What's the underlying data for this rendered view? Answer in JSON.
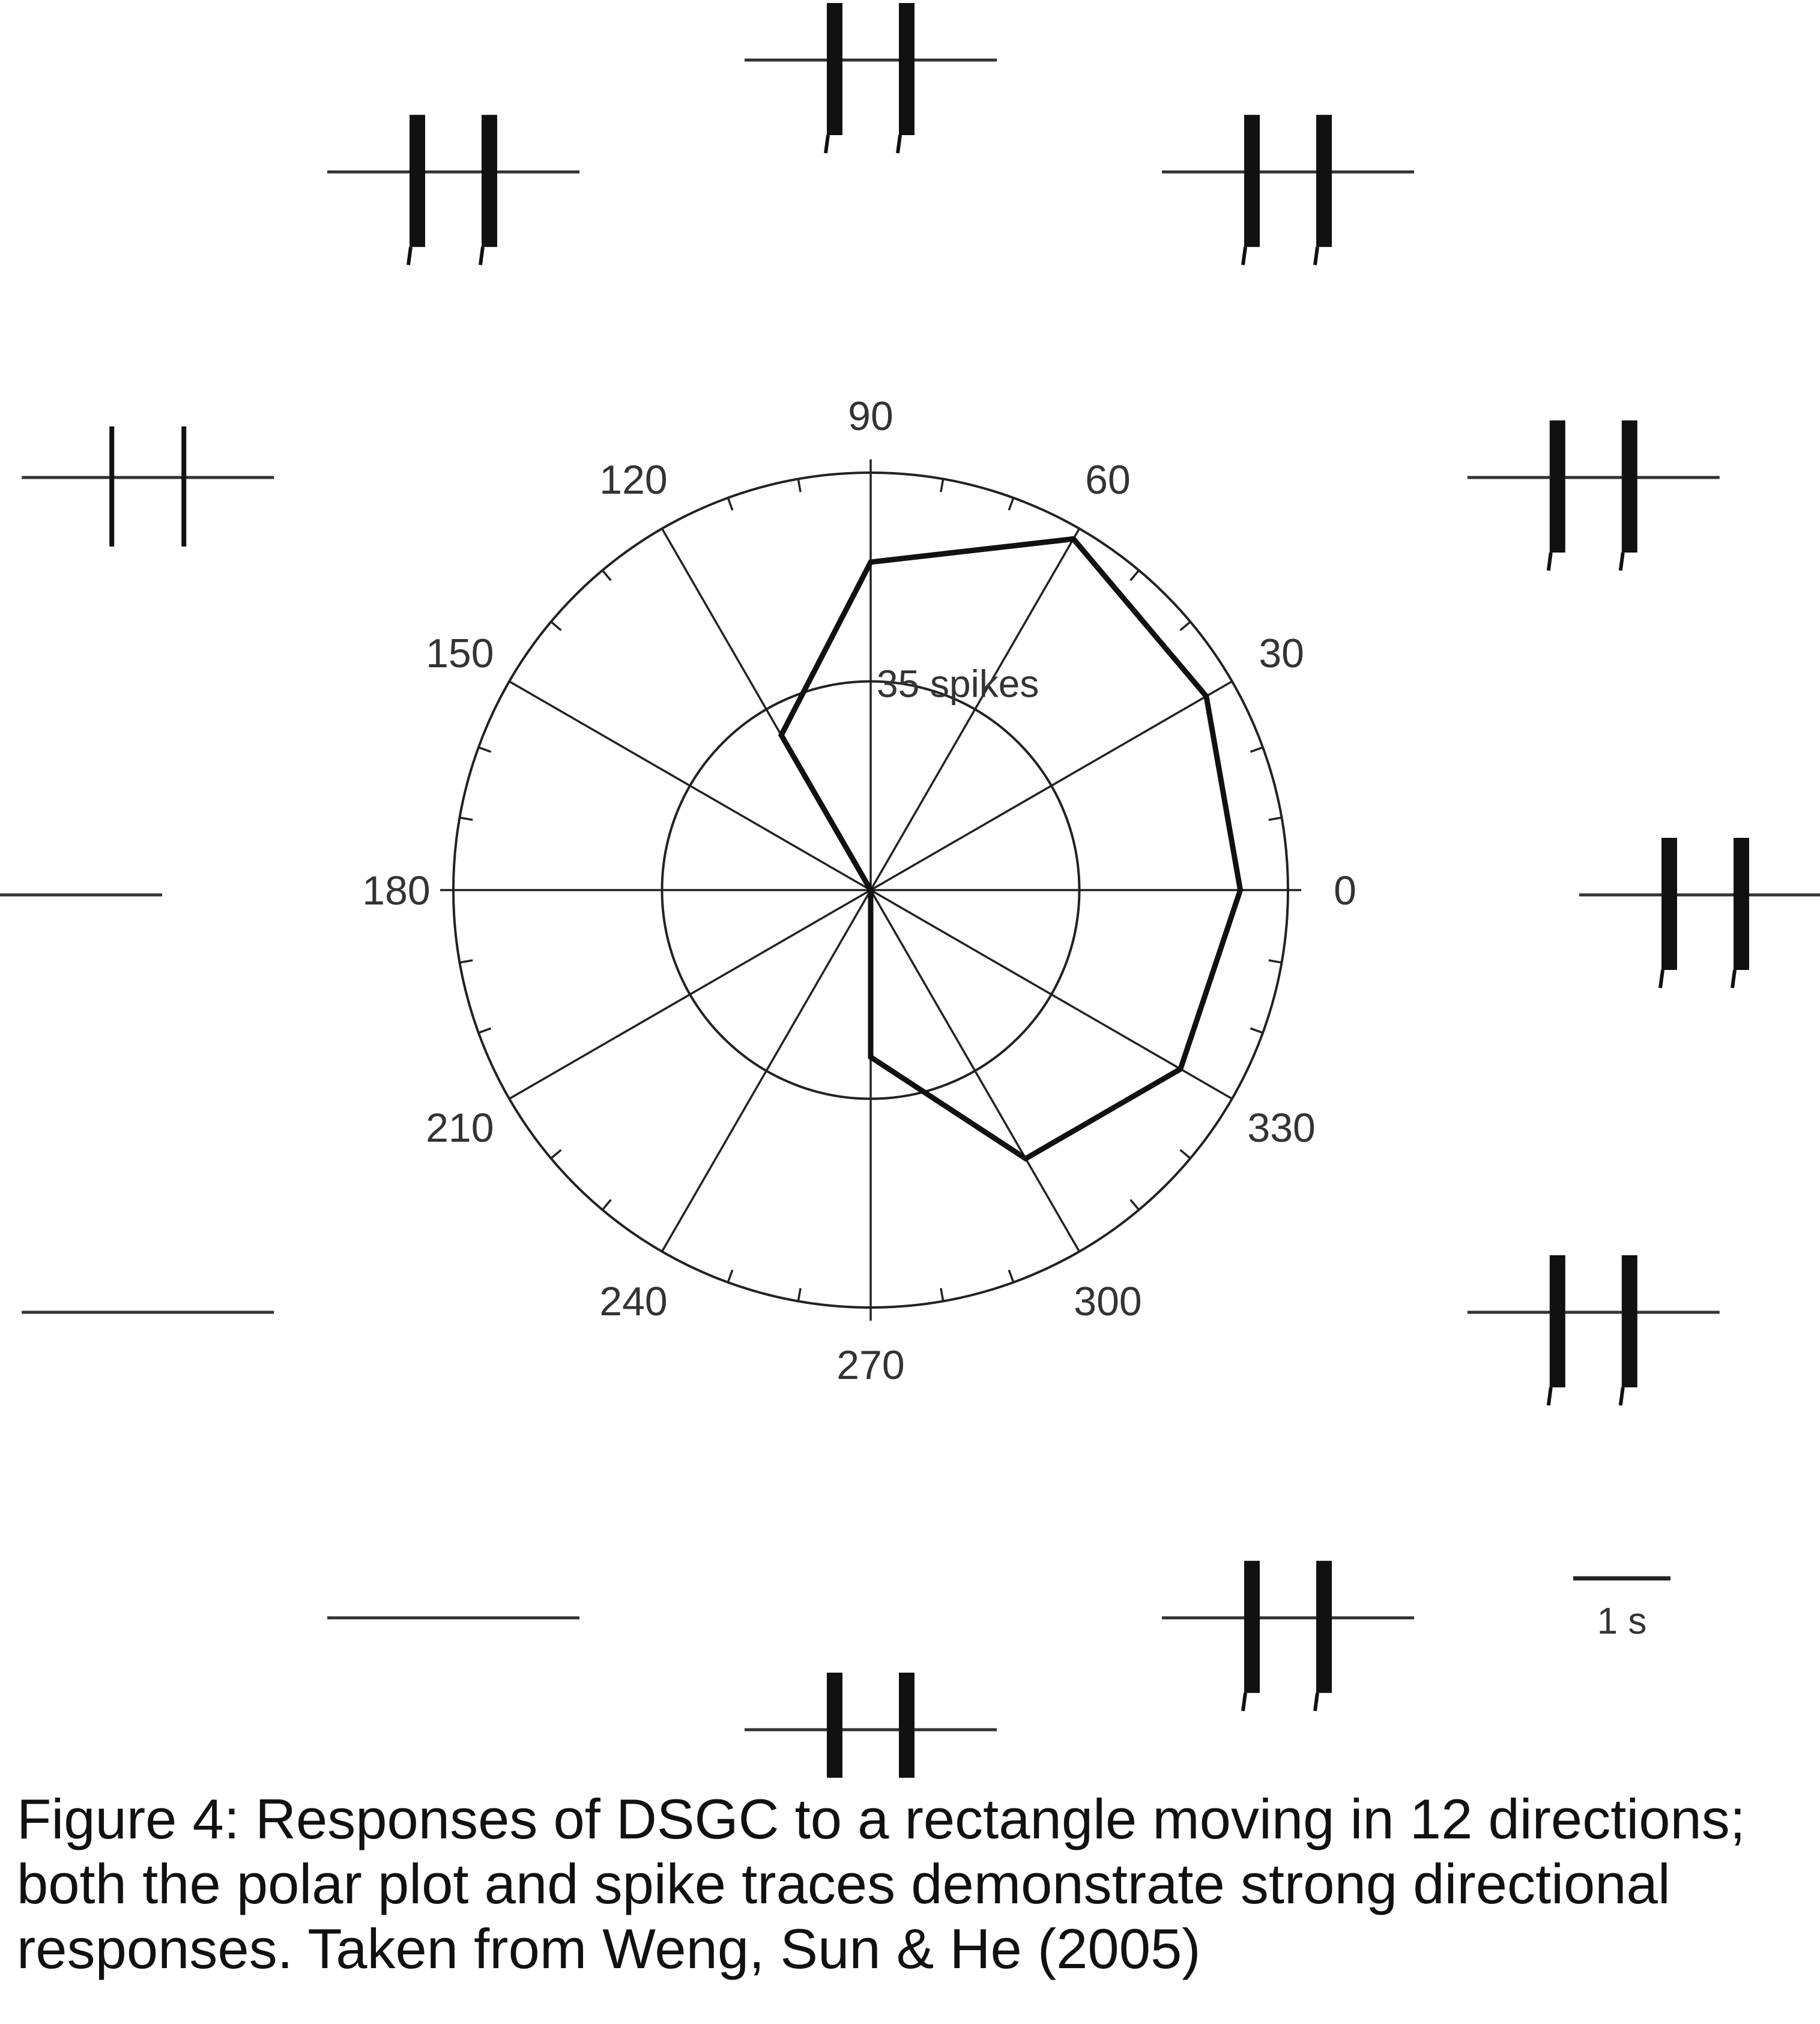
{
  "chart_data": {
    "type": "polar",
    "angle_unit": "degrees",
    "angle_ticks": [
      "0",
      "30",
      "60",
      "90",
      "120",
      "150",
      "180",
      "210",
      "240",
      "270",
      "300",
      "330"
    ],
    "directions": [
      0,
      30,
      60,
      90,
      120,
      150,
      180,
      210,
      240,
      270,
      300,
      330
    ],
    "spike_counts": [
      62,
      65,
      68,
      55,
      30,
      0,
      0,
      0,
      0,
      28,
      52,
      60
    ],
    "radial_max": 70,
    "ring_value": 35,
    "ring_label": "35 spikes",
    "spike_traces": [
      {
        "direction": 0,
        "burst": "strong"
      },
      {
        "direction": 30,
        "burst": "strong"
      },
      {
        "direction": 60,
        "burst": "strong"
      },
      {
        "direction": 90,
        "burst": "strong"
      },
      {
        "direction": 120,
        "burst": "strong"
      },
      {
        "direction": 150,
        "burst": "weak"
      },
      {
        "direction": 180,
        "burst": "none"
      },
      {
        "direction": 210,
        "burst": "none"
      },
      {
        "direction": 240,
        "burst": "none"
      },
      {
        "direction": 270,
        "burst": "strong"
      },
      {
        "direction": 300,
        "burst": "strong"
      },
      {
        "direction": 330,
        "burst": "strong"
      }
    ],
    "scale_bar_label": "1 s"
  },
  "caption": "Figure 4: Responses of DSGC to a rectangle moving in 12 directions; both the polar plot and spike traces demonstrate strong directional responses. Taken from Weng, Sun & He (2005)"
}
